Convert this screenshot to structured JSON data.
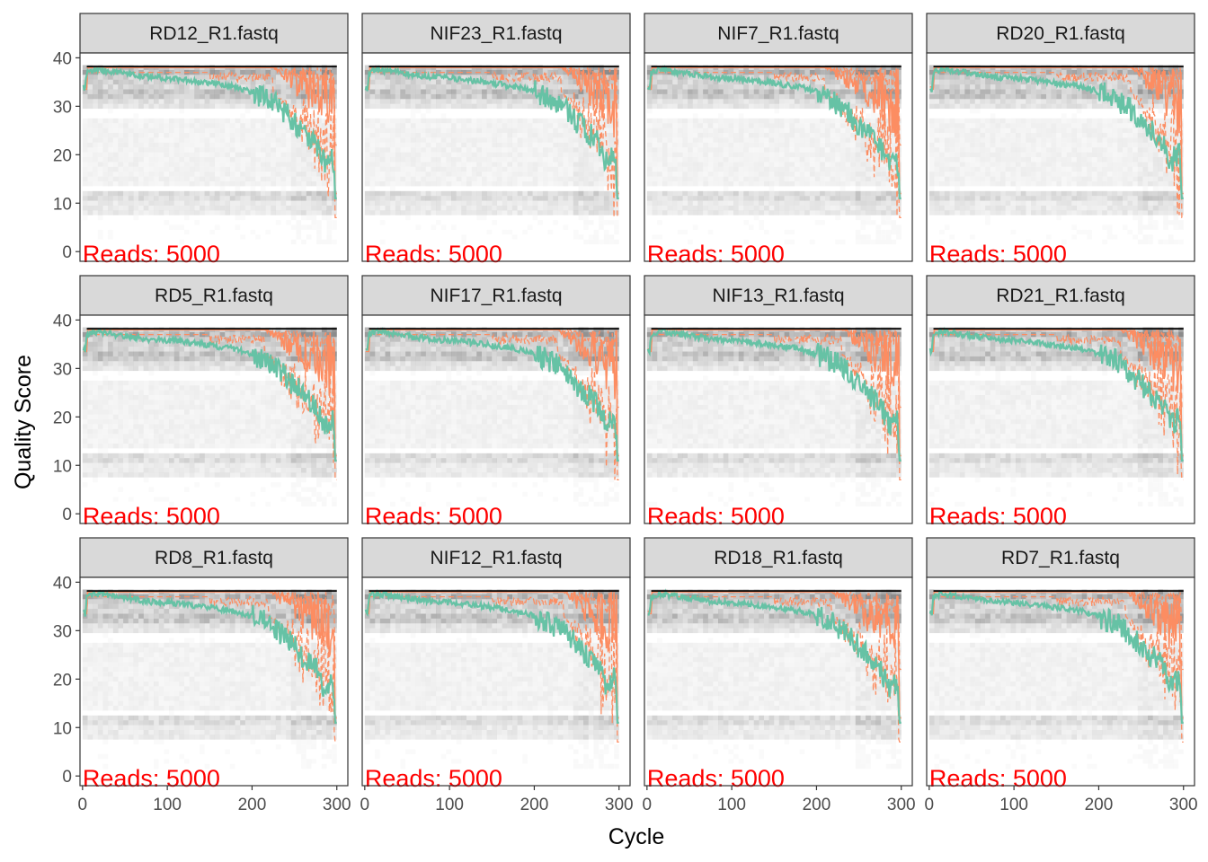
{
  "chart_data": {
    "type": "line",
    "title": "",
    "xlabel": "Cycle",
    "ylabel": "Quality Score",
    "xlim": [
      -3,
      313
    ],
    "ylim": [
      -2,
      41
    ],
    "x_ticks": [
      0,
      100,
      200,
      300
    ],
    "y_ticks": [
      0,
      10,
      20,
      30,
      40
    ],
    "layout": "facet grid 3 rows x 4 columns",
    "series_styles": {
      "mean": {
        "color": "#66c2a5",
        "style": "solid"
      },
      "median": {
        "color": "#fc8d62",
        "style": "solid"
      },
      "quartiles": {
        "color": "#fc8d62",
        "style": "dashed"
      },
      "background": "grayscale heatmap of quality-score frequency"
    },
    "panels": [
      {
        "label": "RD12_R1.fastq",
        "reads_label": "Reads:  5000",
        "mean_drop_start": 225
      },
      {
        "label": "NIF23_R1.fastq",
        "reads_label": "Reads:  5000",
        "mean_drop_start": 232
      },
      {
        "label": "NIF7_R1.fastq",
        "reads_label": "Reads:  5000",
        "mean_drop_start": 210
      },
      {
        "label": "RD20_R1.fastq",
        "reads_label": "Reads:  5000",
        "mean_drop_start": 238
      },
      {
        "label": "RD5_R1.fastq",
        "reads_label": "Reads:  5000",
        "mean_drop_start": 215
      },
      {
        "label": "NIF17_R1.fastq",
        "reads_label": "Reads:  5000",
        "mean_drop_start": 228
      },
      {
        "label": "NIF13_R1.fastq",
        "reads_label": "Reads:  5000",
        "mean_drop_start": 230
      },
      {
        "label": "RD21_R1.fastq",
        "reads_label": "Reads:  5000",
        "mean_drop_start": 226
      },
      {
        "label": "RD8_R1.fastq",
        "reads_label": "Reads:  5000",
        "mean_drop_start": 220
      },
      {
        "label": "NIF12_R1.fastq",
        "reads_label": "Reads:  5000",
        "mean_drop_start": 235
      },
      {
        "label": "RD18_R1.fastq",
        "reads_label": "Reads:  5000",
        "mean_drop_start": 218
      },
      {
        "label": "RD7_R1.fastq",
        "reads_label": "Reads:  5000",
        "mean_drop_start": 232
      }
    ],
    "mean_profile": [
      [
        0,
        34
      ],
      [
        3,
        33.5
      ],
      [
        5,
        37
      ],
      [
        10,
        37.5
      ],
      [
        20,
        37.5
      ],
      [
        40,
        37
      ],
      [
        60,
        36.5
      ],
      [
        80,
        36
      ],
      [
        100,
        35.8
      ],
      [
        120,
        35.5
      ],
      [
        140,
        35
      ],
      [
        160,
        34.5
      ],
      [
        180,
        34
      ],
      [
        200,
        33
      ],
      [
        220,
        31.5
      ],
      [
        240,
        29
      ],
      [
        260,
        26
      ],
      [
        275,
        24
      ],
      [
        285,
        20
      ],
      [
        295,
        22
      ],
      [
        300,
        10
      ]
    ]
  }
}
